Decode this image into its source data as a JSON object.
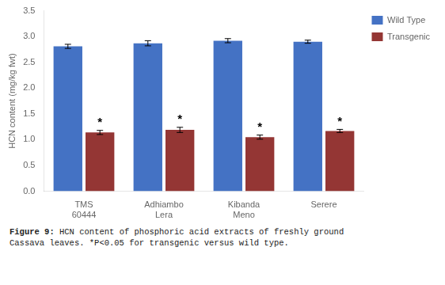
{
  "chart_data": {
    "type": "bar",
    "categories": [
      "TMS\n60444",
      "Adhiambo\nLera",
      "Kibanda\nMeno",
      "Serere"
    ],
    "series": [
      {
        "name": "Wild Type",
        "color": "#4472C4",
        "values": [
          2.81,
          2.87,
          2.92,
          2.9
        ],
        "errors": [
          0.04,
          0.05,
          0.04,
          0.03
        ]
      },
      {
        "name": "Transgenic",
        "color": "#943634",
        "values": [
          1.14,
          1.19,
          1.05,
          1.17
        ],
        "errors": [
          0.04,
          0.05,
          0.04,
          0.03
        ]
      }
    ],
    "ylabel": "HCN content (mg/kg fwt)",
    "ylim": [
      0,
      3.5
    ],
    "yticks": [
      {
        "value": 0,
        "label": "0.0"
      },
      0.5,
      {
        "value": 1.0,
        "label": "1.0"
      },
      1.5,
      {
        "value": 2.0,
        "label": "2.0"
      },
      2.5,
      {
        "value": 3.0,
        "label": "3.0"
      },
      3.5
    ],
    "grid": false,
    "legend": "right",
    "annotations": [
      {
        "text": "*",
        "category": "TMS\n60444",
        "series": "Transgenic"
      },
      {
        "text": "*",
        "category": "Adhiambo\nLera",
        "series": "Transgenic"
      },
      {
        "text": "*",
        "category": "Kibanda\nMeno",
        "series": "Transgenic"
      },
      {
        "text": "*",
        "category": "Serere",
        "series": "Transgenic"
      }
    ],
    "caption_bold": "Figure 9:",
    "caption": " HCN content of phosphoric acid extracts of freshly ground\nCassava leaves. *P<0.05 for transgenic versus wild type."
  }
}
